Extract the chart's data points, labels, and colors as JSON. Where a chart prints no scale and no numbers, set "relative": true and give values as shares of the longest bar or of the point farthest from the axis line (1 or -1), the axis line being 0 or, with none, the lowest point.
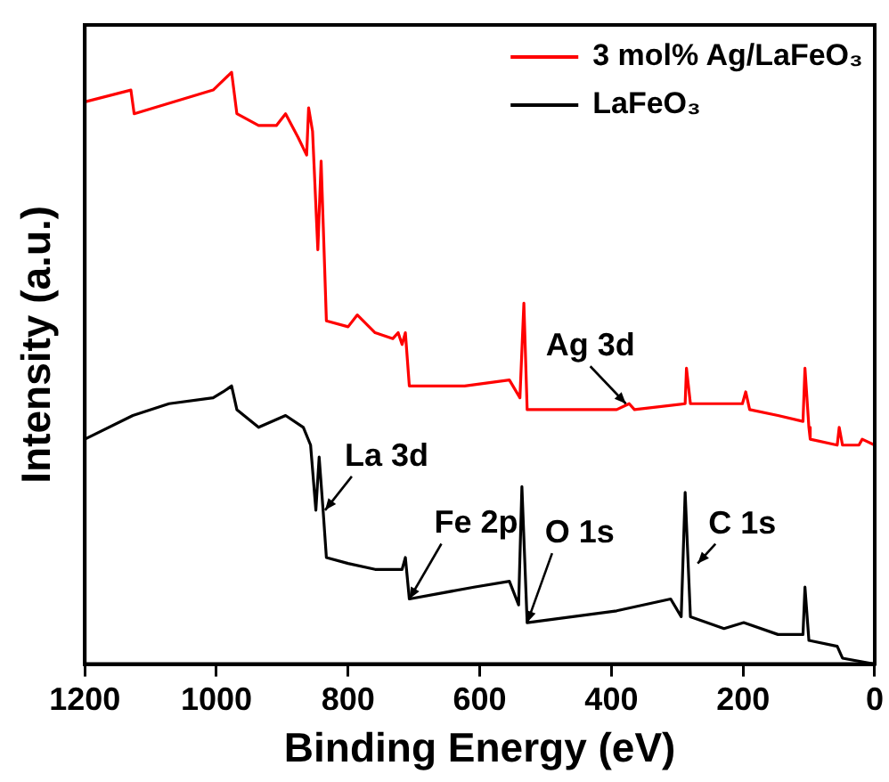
{
  "chart_data": {
    "type": "line",
    "xlabel": "Binding Energy (eV)",
    "ylabel": "Intensity (a.u.)",
    "relative": true,
    "xlim": [
      1200,
      0
    ],
    "xticks": [
      1200,
      1000,
      800,
      600,
      400,
      200,
      0
    ],
    "grid": false,
    "legend": "top right",
    "marker": "none",
    "line_style": "solid",
    "series": [
      {
        "name": "3 mol% Ag/LaFeO₃",
        "color": "#ff0000",
        "x": [
          1200,
          1130,
          1125,
          1005,
          977,
          969,
          936,
          909,
          895,
          876,
          863,
          860,
          854,
          846,
          841,
          833,
          800,
          786,
          759,
          732,
          724,
          718,
          713,
          707,
          623,
          555,
          539,
          533,
          528,
          392,
          373,
          365,
          288,
          286,
          280,
          201,
          196,
          190,
          147,
          109,
          106,
          100,
          98,
          57,
          54,
          49,
          24,
          19,
          0
        ],
        "values": [
          0.95,
          0.97,
          0.93,
          0.97,
          1.0,
          0.93,
          0.91,
          0.91,
          0.93,
          0.89,
          0.86,
          0.94,
          0.9,
          0.7,
          0.85,
          0.58,
          0.57,
          0.59,
          0.56,
          0.55,
          0.56,
          0.54,
          0.56,
          0.47,
          0.47,
          0.48,
          0.45,
          0.61,
          0.43,
          0.43,
          0.44,
          0.43,
          0.44,
          0.5,
          0.44,
          0.44,
          0.46,
          0.43,
          0.42,
          0.41,
          0.5,
          0.4,
          0.38,
          0.37,
          0.4,
          0.37,
          0.37,
          0.38,
          0.37
        ]
      },
      {
        "name": "LaFeO₃",
        "color": "#000000",
        "x": [
          1200,
          1127,
          1072,
          1005,
          990,
          977,
          969,
          936,
          895,
          868,
          857,
          849,
          844,
          838,
          833,
          800,
          759,
          718,
          713,
          707,
          609,
          555,
          541,
          536,
          528,
          392,
          310,
          294,
          288,
          280,
          229,
          199,
          147,
          109,
          106,
          100,
          57,
          49,
          0
        ],
        "values": [
          0.38,
          0.42,
          0.44,
          0.45,
          0.46,
          0.47,
          0.43,
          0.4,
          0.42,
          0.4,
          0.37,
          0.26,
          0.35,
          0.26,
          0.18,
          0.17,
          0.16,
          0.16,
          0.18,
          0.11,
          0.13,
          0.14,
          0.1,
          0.3,
          0.07,
          0.09,
          0.11,
          0.08,
          0.29,
          0.08,
          0.06,
          0.07,
          0.05,
          0.05,
          0.13,
          0.04,
          0.03,
          0.01,
          0
        ]
      }
    ],
    "annotations": [
      {
        "text": "Ag 3d",
        "x": 378,
        "y": 0.44
      },
      {
        "text": "La 3d",
        "x": 835,
        "y": 0.26
      },
      {
        "text": "Fe 2p",
        "x": 707,
        "y": 0.11
      },
      {
        "text": "O 1s",
        "x": 528,
        "y": 0.07
      },
      {
        "text": "C 1s",
        "x": 269,
        "y": 0.17
      }
    ]
  }
}
